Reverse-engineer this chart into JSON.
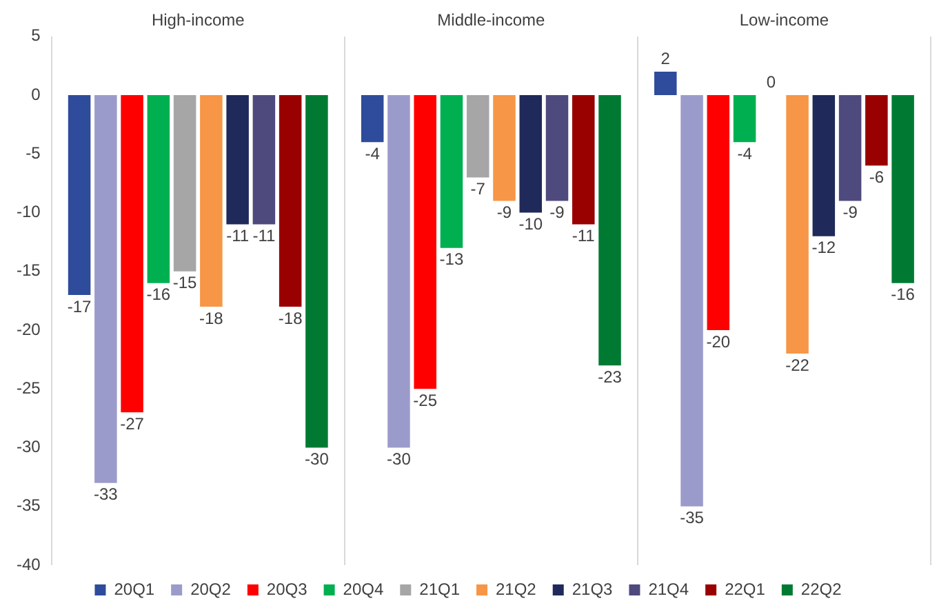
{
  "chart_data": {
    "type": "bar",
    "categories": [
      "High-income",
      "Middle-income",
      "Low-income"
    ],
    "series": [
      {
        "name": "20Q1",
        "color": "#2f4b9b",
        "values": [
          -17,
          -4,
          2
        ]
      },
      {
        "name": "20Q2",
        "color": "#9b9bcb",
        "values": [
          -33,
          -30,
          -35
        ]
      },
      {
        "name": "20Q3",
        "color": "#ff0000",
        "values": [
          -27,
          -25,
          -20
        ]
      },
      {
        "name": "20Q4",
        "color": "#00b050",
        "values": [
          -16,
          -13,
          -4
        ]
      },
      {
        "name": "21Q1",
        "color": "#a6a6a6",
        "values": [
          -15,
          -7,
          0
        ]
      },
      {
        "name": "21Q2",
        "color": "#f79646",
        "values": [
          -18,
          -9,
          -22
        ]
      },
      {
        "name": "21Q3",
        "color": "#1f2a5a",
        "values": [
          -11,
          -10,
          -12
        ]
      },
      {
        "name": "21Q4",
        "color": "#4e4a7e",
        "values": [
          -11,
          -9,
          -9
        ]
      },
      {
        "name": "22Q1",
        "color": "#990000",
        "values": [
          -18,
          -11,
          -6
        ]
      },
      {
        "name": "22Q2",
        "color": "#007a33",
        "values": [
          -30,
          -23,
          -16
        ]
      }
    ],
    "ylim": [
      -40,
      5
    ],
    "yticks": [
      -40,
      -35,
      -30,
      -25,
      -20,
      -15,
      -10,
      -5,
      0,
      5
    ],
    "grid": "x",
    "legend": "bottom",
    "data_labels": true
  }
}
